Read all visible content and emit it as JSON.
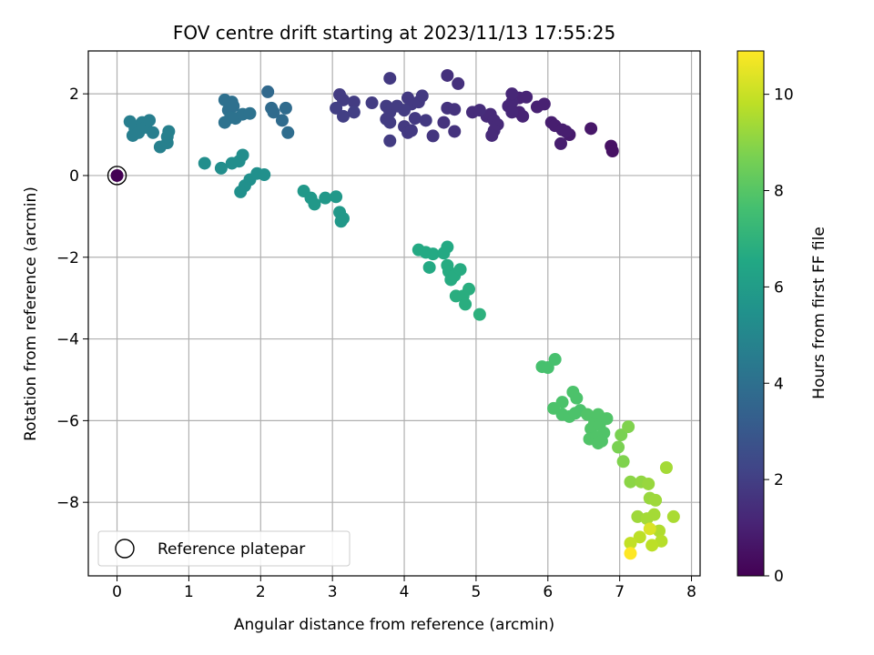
{
  "chart_data": {
    "type": "scatter",
    "title": "FOV centre drift starting at 2023/11/13 17:55:25",
    "xlabel": "Angular distance from reference (arcmin)",
    "ylabel": "Rotation from reference (arcmin)",
    "colorbar_label": "Hours from first FF file",
    "colormap": "viridis",
    "xlim": [
      -0.4,
      8.12
    ],
    "ylim": [
      -9.8,
      3.05
    ],
    "clim": [
      0,
      10.9
    ],
    "xticks": [
      0,
      1,
      2,
      3,
      4,
      5,
      6,
      7,
      8
    ],
    "xtick_labels": [
      "0",
      "1",
      "2",
      "3",
      "4",
      "5",
      "6",
      "7",
      "8"
    ],
    "yticks": [
      2,
      0,
      -2,
      -4,
      -6,
      -8
    ],
    "ytick_labels": [
      "2",
      "0",
      "−2",
      "−4",
      "−6",
      "−8"
    ],
    "cticks": [
      0,
      2,
      4,
      6,
      8,
      10
    ],
    "ctick_labels": [
      "0",
      "2",
      "4",
      "6",
      "8",
      "10"
    ],
    "grid": true,
    "legend": {
      "placement": "lower-left",
      "label": "Reference platepar",
      "marker": "hollow-circle"
    },
    "reference_point": {
      "x": 0,
      "y": 0,
      "hours": 0.0
    },
    "series": [
      {
        "points": [
          {
            "x": 4.6,
            "y": 2.45,
            "h": 1.5
          },
          {
            "x": 3.8,
            "y": 2.38,
            "h": 1.8
          },
          {
            "x": 4.75,
            "y": 2.25,
            "h": 1.5
          },
          {
            "x": 3.05,
            "y": 1.65,
            "h": 2.0
          },
          {
            "x": 3.1,
            "y": 1.98,
            "h": 1.9
          },
          {
            "x": 3.15,
            "y": 1.85,
            "h": 1.9
          },
          {
            "x": 3.3,
            "y": 1.8,
            "h": 1.9
          },
          {
            "x": 3.55,
            "y": 1.78,
            "h": 1.9
          },
          {
            "x": 3.75,
            "y": 1.7,
            "h": 1.9
          },
          {
            "x": 3.15,
            "y": 1.45,
            "h": 2.0
          },
          {
            "x": 3.3,
            "y": 1.55,
            "h": 2.0
          },
          {
            "x": 3.8,
            "y": 1.55,
            "h": 1.9
          },
          {
            "x": 3.75,
            "y": 1.38,
            "h": 1.9
          },
          {
            "x": 3.8,
            "y": 1.3,
            "h": 1.9
          },
          {
            "x": 3.9,
            "y": 1.7,
            "h": 1.9
          },
          {
            "x": 4.0,
            "y": 1.6,
            "h": 1.9
          },
          {
            "x": 4.05,
            "y": 1.9,
            "h": 1.8
          },
          {
            "x": 4.1,
            "y": 1.75,
            "h": 1.8
          },
          {
            "x": 4.2,
            "y": 1.8,
            "h": 1.8
          },
          {
            "x": 4.25,
            "y": 1.95,
            "h": 1.8
          },
          {
            "x": 4.15,
            "y": 1.4,
            "h": 1.8
          },
          {
            "x": 4.3,
            "y": 1.35,
            "h": 1.8
          },
          {
            "x": 4.0,
            "y": 1.2,
            "h": 1.8
          },
          {
            "x": 4.05,
            "y": 1.05,
            "h": 1.8
          },
          {
            "x": 4.1,
            "y": 1.1,
            "h": 1.8
          },
          {
            "x": 3.8,
            "y": 0.85,
            "h": 1.9
          },
          {
            "x": 4.4,
            "y": 0.97,
            "h": 1.7
          },
          {
            "x": 4.55,
            "y": 1.3,
            "h": 1.6
          },
          {
            "x": 4.6,
            "y": 1.65,
            "h": 1.6
          },
          {
            "x": 4.7,
            "y": 1.62,
            "h": 1.6
          },
          {
            "x": 4.7,
            "y": 1.08,
            "h": 1.6
          },
          {
            "x": 4.95,
            "y": 1.55,
            "h": 1.4
          },
          {
            "x": 5.05,
            "y": 1.6,
            "h": 1.4
          },
          {
            "x": 5.15,
            "y": 1.45,
            "h": 1.3
          },
          {
            "x": 5.2,
            "y": 1.5,
            "h": 1.3
          },
          {
            "x": 5.25,
            "y": 1.35,
            "h": 1.3
          },
          {
            "x": 5.3,
            "y": 1.25,
            "h": 1.3
          },
          {
            "x": 5.25,
            "y": 1.1,
            "h": 1.3
          },
          {
            "x": 5.22,
            "y": 0.98,
            "h": 1.3
          },
          {
            "x": 5.45,
            "y": 1.7,
            "h": 1.2
          },
          {
            "x": 5.5,
            "y": 1.8,
            "h": 1.2
          },
          {
            "x": 5.5,
            "y": 2.0,
            "h": 1.2
          },
          {
            "x": 5.6,
            "y": 1.9,
            "h": 1.1
          },
          {
            "x": 5.5,
            "y": 1.55,
            "h": 1.2
          },
          {
            "x": 5.6,
            "y": 1.55,
            "h": 1.1
          },
          {
            "x": 5.65,
            "y": 1.45,
            "h": 1.1
          },
          {
            "x": 5.7,
            "y": 1.92,
            "h": 1.1
          },
          {
            "x": 5.85,
            "y": 1.68,
            "h": 1.0
          },
          {
            "x": 5.95,
            "y": 1.75,
            "h": 1.0
          },
          {
            "x": 6.05,
            "y": 1.3,
            "h": 0.9
          },
          {
            "x": 6.1,
            "y": 1.22,
            "h": 0.9
          },
          {
            "x": 6.2,
            "y": 1.12,
            "h": 0.9
          },
          {
            "x": 6.25,
            "y": 1.08,
            "h": 0.9
          },
          {
            "x": 6.3,
            "y": 1.0,
            "h": 0.8
          },
          {
            "x": 6.18,
            "y": 0.78,
            "h": 0.9
          },
          {
            "x": 6.6,
            "y": 1.15,
            "h": 0.7
          },
          {
            "x": 6.88,
            "y": 0.72,
            "h": 0.5
          },
          {
            "x": 6.9,
            "y": 0.6,
            "h": 0.5
          },
          {
            "x": 0.18,
            "y": 1.32,
            "h": 4.6
          },
          {
            "x": 0.25,
            "y": 1.15,
            "h": 4.6
          },
          {
            "x": 0.22,
            "y": 0.98,
            "h": 4.6
          },
          {
            "x": 0.3,
            "y": 1.05,
            "h": 4.6
          },
          {
            "x": 0.35,
            "y": 1.3,
            "h": 4.6
          },
          {
            "x": 0.4,
            "y": 1.18,
            "h": 4.6
          },
          {
            "x": 0.45,
            "y": 1.35,
            "h": 4.6
          },
          {
            "x": 0.5,
            "y": 1.05,
            "h": 4.6
          },
          {
            "x": 0.6,
            "y": 0.7,
            "h": 4.7
          },
          {
            "x": 0.7,
            "y": 0.8,
            "h": 4.7
          },
          {
            "x": 0.72,
            "y": 1.08,
            "h": 4.7
          },
          {
            "x": 0.7,
            "y": 0.95,
            "h": 4.7
          },
          {
            "x": 1.5,
            "y": 1.85,
            "h": 4.0
          },
          {
            "x": 1.55,
            "y": 1.6,
            "h": 4.0
          },
          {
            "x": 1.6,
            "y": 1.8,
            "h": 4.0
          },
          {
            "x": 1.62,
            "y": 1.7,
            "h": 4.0
          },
          {
            "x": 1.58,
            "y": 1.42,
            "h": 4.1
          },
          {
            "x": 1.5,
            "y": 1.3,
            "h": 4.1
          },
          {
            "x": 1.65,
            "y": 1.4,
            "h": 4.1
          },
          {
            "x": 1.75,
            "y": 1.5,
            "h": 4.1
          },
          {
            "x": 1.85,
            "y": 1.52,
            "h": 4.1
          },
          {
            "x": 2.1,
            "y": 2.05,
            "h": 3.7
          },
          {
            "x": 2.15,
            "y": 1.65,
            "h": 3.8
          },
          {
            "x": 2.18,
            "y": 1.55,
            "h": 3.8
          },
          {
            "x": 2.3,
            "y": 1.35,
            "h": 3.8
          },
          {
            "x": 2.35,
            "y": 1.65,
            "h": 3.8
          },
          {
            "x": 2.38,
            "y": 1.05,
            "h": 3.9
          },
          {
            "x": 1.22,
            "y": 0.3,
            "h": 5.3
          },
          {
            "x": 1.45,
            "y": 0.18,
            "h": 5.3
          },
          {
            "x": 1.6,
            "y": 0.3,
            "h": 5.3
          },
          {
            "x": 1.7,
            "y": 0.35,
            "h": 5.3
          },
          {
            "x": 1.75,
            "y": 0.5,
            "h": 5.3
          },
          {
            "x": 1.85,
            "y": -0.1,
            "h": 5.4
          },
          {
            "x": 1.78,
            "y": -0.25,
            "h": 5.4
          },
          {
            "x": 1.72,
            "y": -0.4,
            "h": 5.4
          },
          {
            "x": 1.95,
            "y": 0.05,
            "h": 5.4
          },
          {
            "x": 2.05,
            "y": 0.02,
            "h": 5.4
          },
          {
            "x": 2.6,
            "y": -0.38,
            "h": 5.8
          },
          {
            "x": 2.7,
            "y": -0.55,
            "h": 5.8
          },
          {
            "x": 2.75,
            "y": -0.7,
            "h": 5.8
          },
          {
            "x": 2.9,
            "y": -0.55,
            "h": 5.8
          },
          {
            "x": 3.05,
            "y": -0.52,
            "h": 5.8
          },
          {
            "x": 3.1,
            "y": -0.9,
            "h": 5.8
          },
          {
            "x": 3.15,
            "y": -1.05,
            "h": 5.8
          },
          {
            "x": 3.12,
            "y": -1.12,
            "h": 5.8
          },
          {
            "x": 4.2,
            "y": -1.82,
            "h": 6.6
          },
          {
            "x": 4.3,
            "y": -1.88,
            "h": 6.6
          },
          {
            "x": 4.4,
            "y": -1.92,
            "h": 6.6
          },
          {
            "x": 4.35,
            "y": -2.25,
            "h": 6.6
          },
          {
            "x": 4.55,
            "y": -1.9,
            "h": 6.6
          },
          {
            "x": 4.6,
            "y": -1.75,
            "h": 6.6
          },
          {
            "x": 4.6,
            "y": -2.2,
            "h": 6.7
          },
          {
            "x": 4.62,
            "y": -2.35,
            "h": 6.7
          },
          {
            "x": 4.65,
            "y": -2.55,
            "h": 6.7
          },
          {
            "x": 4.7,
            "y": -2.45,
            "h": 6.7
          },
          {
            "x": 4.78,
            "y": -2.3,
            "h": 6.7
          },
          {
            "x": 4.72,
            "y": -2.95,
            "h": 6.8
          },
          {
            "x": 4.82,
            "y": -2.95,
            "h": 6.8
          },
          {
            "x": 4.85,
            "y": -3.15,
            "h": 6.8
          },
          {
            "x": 4.9,
            "y": -2.78,
            "h": 6.8
          },
          {
            "x": 5.05,
            "y": -3.4,
            "h": 6.9
          },
          {
            "x": 5.92,
            "y": -4.68,
            "h": 7.7
          },
          {
            "x": 6.0,
            "y": -4.7,
            "h": 7.7
          },
          {
            "x": 6.1,
            "y": -4.5,
            "h": 7.7
          },
          {
            "x": 6.08,
            "y": -5.7,
            "h": 7.8
          },
          {
            "x": 6.2,
            "y": -5.55,
            "h": 7.8
          },
          {
            "x": 6.2,
            "y": -5.85,
            "h": 7.8
          },
          {
            "x": 6.3,
            "y": -5.9,
            "h": 7.8
          },
          {
            "x": 6.35,
            "y": -5.3,
            "h": 7.8
          },
          {
            "x": 6.4,
            "y": -5.45,
            "h": 7.8
          },
          {
            "x": 6.45,
            "y": -5.75,
            "h": 7.8
          },
          {
            "x": 6.38,
            "y": -5.82,
            "h": 7.8
          },
          {
            "x": 6.55,
            "y": -5.85,
            "h": 7.9
          },
          {
            "x": 6.6,
            "y": -6.2,
            "h": 7.9
          },
          {
            "x": 6.65,
            "y": -6.05,
            "h": 7.9
          },
          {
            "x": 6.7,
            "y": -5.85,
            "h": 7.9
          },
          {
            "x": 6.72,
            "y": -6.1,
            "h": 7.9
          },
          {
            "x": 6.78,
            "y": -6.3,
            "h": 7.9
          },
          {
            "x": 6.82,
            "y": -5.95,
            "h": 7.9
          },
          {
            "x": 6.58,
            "y": -6.45,
            "h": 7.9
          },
          {
            "x": 6.68,
            "y": -6.4,
            "h": 7.9
          },
          {
            "x": 6.75,
            "y": -6.5,
            "h": 7.9
          },
          {
            "x": 6.7,
            "y": -6.55,
            "h": 7.9
          },
          {
            "x": 6.98,
            "y": -6.65,
            "h": 8.7
          },
          {
            "x": 7.02,
            "y": -6.35,
            "h": 8.7
          },
          {
            "x": 7.12,
            "y": -6.15,
            "h": 8.8
          },
          {
            "x": 7.05,
            "y": -7.0,
            "h": 8.8
          },
          {
            "x": 7.15,
            "y": -7.5,
            "h": 9.0
          },
          {
            "x": 7.3,
            "y": -7.5,
            "h": 9.1
          },
          {
            "x": 7.4,
            "y": -7.55,
            "h": 9.2
          },
          {
            "x": 7.42,
            "y": -7.9,
            "h": 9.2
          },
          {
            "x": 7.5,
            "y": -7.95,
            "h": 9.3
          },
          {
            "x": 7.65,
            "y": -7.15,
            "h": 9.4
          },
          {
            "x": 7.25,
            "y": -8.35,
            "h": 9.3
          },
          {
            "x": 7.38,
            "y": -8.4,
            "h": 9.4
          },
          {
            "x": 7.48,
            "y": -8.3,
            "h": 9.4
          },
          {
            "x": 7.55,
            "y": -8.7,
            "h": 9.6
          },
          {
            "x": 7.75,
            "y": -8.35,
            "h": 9.5
          },
          {
            "x": 7.58,
            "y": -8.95,
            "h": 9.7
          },
          {
            "x": 7.45,
            "y": -9.05,
            "h": 9.8
          },
          {
            "x": 7.28,
            "y": -8.85,
            "h": 9.8
          },
          {
            "x": 7.15,
            "y": -9.0,
            "h": 9.9
          },
          {
            "x": 7.42,
            "y": -8.65,
            "h": 10.3
          },
          {
            "x": 7.15,
            "y": -9.25,
            "h": 10.9
          }
        ]
      }
    ]
  }
}
